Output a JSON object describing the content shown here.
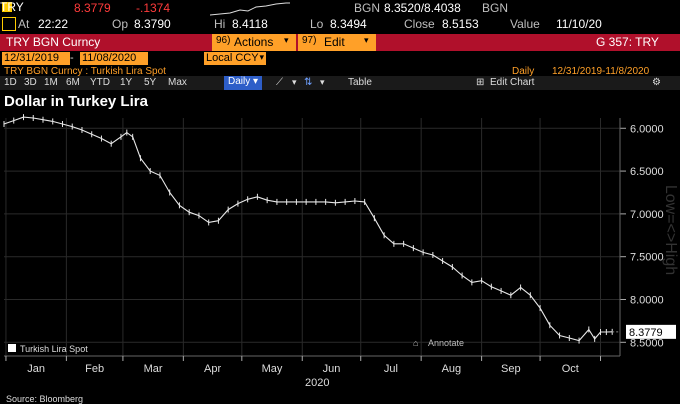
{
  "quote": {
    "ticker": "TRY",
    "last": "8.3779",
    "change": "-.1374",
    "bid_ask_label": "BGN",
    "bid_ask": "8.3520/8.4038",
    "bid_ask_source": "BGN",
    "at_label": "At",
    "time": "22:22",
    "open_label": "Op",
    "open": "8.3790",
    "high_label": "Hi",
    "high": "8.4118",
    "low_label": "Lo",
    "low": "8.3494",
    "close_label": "Close",
    "close": "8.5153",
    "value_label": "Value",
    "value_date": "11/10/20"
  },
  "command_bar": {
    "security": "TRY BGN Curncy",
    "actions_label": "Actions",
    "actions_prefix": "96)",
    "edit_label": "Edit",
    "edit_prefix": "97)",
    "right_label": "G 357: TRY"
  },
  "date_row": {
    "start": "12/31/2019",
    "sep": "-",
    "end": "11/08/2020",
    "currency": "Local CCY"
  },
  "subtitle": {
    "left": "TRY BGN Curncy : Turkish Lira Spot",
    "freq": "Daily",
    "range": "12/31/2019-11/8/2020"
  },
  "range_buttons": [
    "1D",
    "3D",
    "1M",
    "6M",
    "YTD",
    "1Y",
    "5Y",
    "Max"
  ],
  "selected_freq": "Daily",
  "table_label": "Table",
  "edit_chart_label": "Edit Chart",
  "chart_data": {
    "type": "line",
    "title": "Dollar in Turkey Lira",
    "legend": "Turkish Lira Spot",
    "annotate_label": "Annotate",
    "y_axis_label": "Low=<>High",
    "x_year": "2020",
    "source": "Source: Bloomberg",
    "y_inverted": true,
    "ylim": [
      5.88,
      8.66
    ],
    "yticks": [
      6.0,
      6.5,
      7.0,
      7.5,
      8.0,
      8.5
    ],
    "ytick_labels": [
      "6.0000",
      "6.5000",
      "7.0000",
      "7.5000",
      "8.0000",
      "8.5000"
    ],
    "last_value_label": "8.3779",
    "last_value": 8.3779,
    "months": [
      "Jan",
      "Feb",
      "Mar",
      "Apr",
      "May",
      "Jun",
      "Jul",
      "Aug",
      "Sep",
      "Oct"
    ],
    "x_days": [
      0,
      5,
      10,
      15,
      20,
      25,
      30,
      35,
      40,
      45,
      50,
      55,
      60,
      63,
      66,
      70,
      75,
      80,
      85,
      90,
      95,
      100,
      105,
      110,
      115,
      120,
      125,
      130,
      135,
      140,
      145,
      150,
      155,
      160,
      165,
      170,
      175,
      180,
      185,
      190,
      195,
      200,
      205,
      210,
      215,
      220,
      225,
      230,
      235,
      240,
      245,
      250,
      255,
      260,
      265,
      270,
      275,
      280,
      285,
      290,
      295,
      300,
      303,
      306,
      309,
      312
    ],
    "values": [
      5.95,
      5.91,
      5.87,
      5.88,
      5.9,
      5.92,
      5.95,
      5.98,
      6.02,
      6.07,
      6.12,
      6.18,
      6.1,
      6.05,
      6.1,
      6.35,
      6.5,
      6.55,
      6.75,
      6.9,
      6.98,
      7.02,
      7.1,
      7.08,
      6.95,
      6.88,
      6.83,
      6.8,
      6.84,
      6.86,
      6.86,
      6.86,
      6.86,
      6.86,
      6.86,
      6.87,
      6.86,
      6.85,
      6.86,
      7.05,
      7.25,
      7.35,
      7.35,
      7.4,
      7.45,
      7.48,
      7.55,
      7.62,
      7.72,
      7.8,
      7.78,
      7.85,
      7.9,
      7.95,
      7.86,
      7.95,
      8.1,
      8.3,
      8.42,
      8.45,
      8.48,
      8.35,
      8.46,
      8.38,
      8.38,
      8.3779
    ]
  }
}
